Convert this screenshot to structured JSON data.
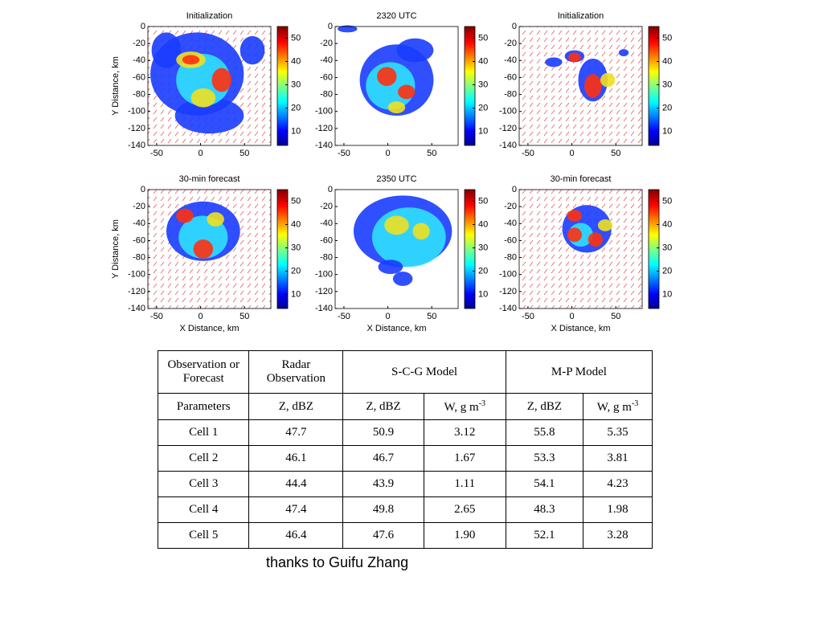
{
  "axes": {
    "xlim": [
      -60,
      80
    ],
    "xticks": [
      -50,
      0,
      50
    ],
    "ylim": [
      -140,
      0
    ],
    "yticks": [
      0,
      -20,
      -40,
      -60,
      -80,
      -100,
      -120,
      -140
    ],
    "clim": [
      4,
      55
    ],
    "cticks": [
      10,
      20,
      30,
      40,
      50
    ]
  },
  "panels": [
    {
      "title": "Initialization",
      "ylabel": "Y Distance, km"
    },
    {
      "title": "2320 UTC"
    },
    {
      "title": "Initialization"
    },
    {
      "title": "30-min forecast",
      "ylabel": "Y Distance, km",
      "xlabel": "X Distance, km"
    },
    {
      "title": "2350 UTC",
      "xlabel": "X Distance, km"
    },
    {
      "title": "30-min forecast",
      "xlabel": "X Distance, km"
    }
  ],
  "table": {
    "header": [
      "Observation or Forecast",
      "Radar Observation",
      "S-C-G Model",
      "M-P Model"
    ],
    "subheader": [
      {
        "text": "Parameters"
      },
      {
        "text": "Z, dBZ"
      },
      {
        "text": "Z, dBZ"
      },
      {
        "text": "W, g m",
        "sup": "-3"
      },
      {
        "text": "Z, dBZ"
      },
      {
        "text": "W, g m",
        "sup": "-3"
      }
    ],
    "rows": [
      [
        "Cell 1",
        "47.7",
        "50.9",
        "3.12",
        "55.8",
        "5.35"
      ],
      [
        "Cell 2",
        "46.1",
        "46.7",
        "1.67",
        "53.3",
        "3.81"
      ],
      [
        "Cell 3",
        "44.4",
        "43.9",
        "1.11",
        "54.1",
        "4.23"
      ],
      [
        "Cell 4",
        "47.4",
        "49.8",
        "2.65",
        "48.3",
        "1.98"
      ],
      [
        "Cell 5",
        "46.4",
        "47.6",
        "1.90",
        "52.1",
        "3.28"
      ]
    ]
  },
  "footer": "thanks to Guifu Zhang"
}
